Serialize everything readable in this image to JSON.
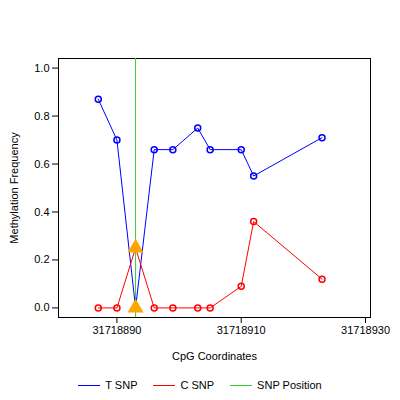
{
  "chart_data": {
    "type": "line",
    "x_label": "CpG Coordinates",
    "y_label": "Methylation Frequency",
    "x": [
      31718887,
      31718890,
      31718893,
      31718896,
      31718899,
      31718903,
      31718905,
      31718910,
      31718912,
      31718923
    ],
    "series": [
      {
        "name": "T SNP",
        "color": "#0000ff",
        "marker": "circle",
        "values": [
          0.87,
          0.7,
          0.0,
          0.66,
          0.66,
          0.75,
          0.66,
          0.66,
          0.55,
          0.71
        ]
      },
      {
        "name": "C SNP",
        "color": "#ff0000",
        "marker": "circle",
        "values": [
          0.0,
          0.0,
          0.25,
          0.0,
          0.0,
          0.0,
          0.0,
          0.09,
          0.36,
          0.12
        ]
      }
    ],
    "snp": {
      "name": "SNP Position",
      "x": 31718893,
      "color": "#33cc33"
    },
    "snp_marker": {
      "marker": "triangle",
      "color": "orange"
    },
    "xlim": [
      31718880.6,
      31718930.8
    ],
    "xticks": [
      31718890,
      31718910,
      31718930
    ],
    "ylim": [
      -0.04,
      1.04
    ],
    "yticks": [
      {
        "value": 0,
        "label": "0.0"
      },
      {
        "value": 0.2,
        "label": "0.2"
      },
      {
        "value": 0.4,
        "label": "0.4"
      },
      {
        "value": 0.6,
        "label": "0.6"
      },
      {
        "value": 0.8,
        "label": "0.8"
      },
      {
        "value": 1,
        "label": "1.0"
      }
    ],
    "grid": false,
    "legend": "bottom"
  }
}
